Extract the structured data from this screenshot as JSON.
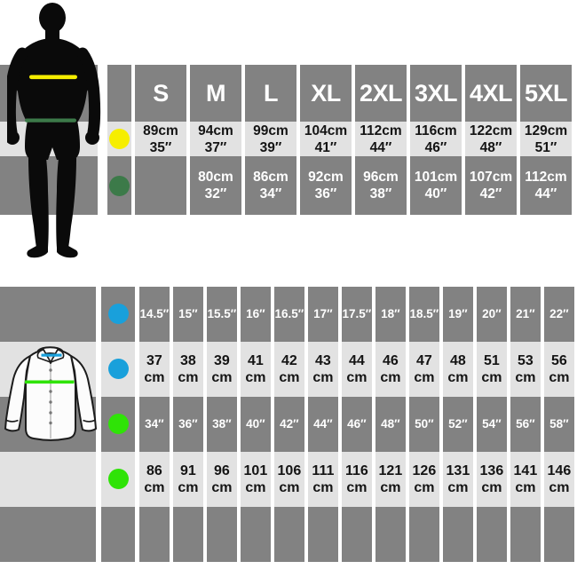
{
  "colors": {
    "band_dark": "#828282",
    "band_light": "#e2e2e2",
    "yellow": "#f6ee00",
    "dark_green": "#3c7a49",
    "blue": "#19a0db",
    "bright_green": "#2fe307",
    "silhouette_black": "#0a0a0a",
    "shirt_fill": "#fcfcfc",
    "shirt_outline": "#1c1c1c",
    "text_on_dark": "#ffffff",
    "text_on_light": "#141414"
  },
  "top_table": {
    "figure": "man-silhouette",
    "figure_markers": [
      {
        "name": "yellow-line",
        "color": "#f6ee00"
      },
      {
        "name": "green-line",
        "color": "#3c7a49"
      }
    ],
    "header": [
      "S",
      "M",
      "L",
      "XL",
      "2XL",
      "3XL",
      "4XL",
      "5XL"
    ],
    "rows": [
      {
        "dot": "yellow",
        "dot_color": "#f6ee00",
        "shade": "light",
        "cells": [
          [
            "89cm",
            "35″"
          ],
          [
            "94cm",
            "37″"
          ],
          [
            "99cm",
            "39″"
          ],
          [
            "104cm",
            "41″"
          ],
          [
            "112cm",
            "44″"
          ],
          [
            "116cm",
            "46″"
          ],
          [
            "122cm",
            "48″"
          ],
          [
            "129cm",
            "51″"
          ]
        ]
      },
      {
        "dot": "green",
        "dot_color": "#3c7a49",
        "shade": "dark",
        "cells": [
          [
            "",
            ""
          ],
          [
            "80cm",
            "32″"
          ],
          [
            "86cm",
            "34″"
          ],
          [
            "92cm",
            "36″"
          ],
          [
            "96cm",
            "38″"
          ],
          [
            "101cm",
            "40″"
          ],
          [
            "107cm",
            "42″"
          ],
          [
            "112cm",
            "44″"
          ]
        ]
      }
    ]
  },
  "bottom_table": {
    "figure": "shirt-illustration",
    "figure_markers": [
      {
        "name": "blue-collar-line",
        "color": "#19a0db"
      },
      {
        "name": "green-chest-line",
        "color": "#2fe307"
      }
    ],
    "rows": [
      {
        "dot": "blue",
        "dot_color": "#19a0db",
        "shade": "dark",
        "style": "inch",
        "cells": [
          [
            "14.5″"
          ],
          [
            "15″"
          ],
          [
            "15.5″"
          ],
          [
            "16″"
          ],
          [
            "16.5″"
          ],
          [
            "17″"
          ],
          [
            "17.5″"
          ],
          [
            "18″"
          ],
          [
            "18.5″"
          ],
          [
            "19″"
          ],
          [
            "20″"
          ],
          [
            "21″"
          ],
          [
            "22″"
          ]
        ]
      },
      {
        "dot": "blue",
        "dot_color": "#19a0db",
        "shade": "light",
        "style": "cm",
        "cells": [
          [
            "37",
            "cm"
          ],
          [
            "38",
            "cm"
          ],
          [
            "39",
            "cm"
          ],
          [
            "41",
            "cm"
          ],
          [
            "42",
            "cm"
          ],
          [
            "43",
            "cm"
          ],
          [
            "44",
            "cm"
          ],
          [
            "46",
            "cm"
          ],
          [
            "47",
            "cm"
          ],
          [
            "48",
            "cm"
          ],
          [
            "51",
            "cm"
          ],
          [
            "53",
            "cm"
          ],
          [
            "56",
            "cm"
          ]
        ]
      },
      {
        "dot": "green",
        "dot_color": "#2fe307",
        "shade": "dark",
        "style": "inch",
        "cells": [
          [
            "34″"
          ],
          [
            "36″"
          ],
          [
            "38″"
          ],
          [
            "40″"
          ],
          [
            "42″"
          ],
          [
            "44″"
          ],
          [
            "46″"
          ],
          [
            "48″"
          ],
          [
            "50″"
          ],
          [
            "52″"
          ],
          [
            "54″"
          ],
          [
            "56″"
          ],
          [
            "58″"
          ]
        ]
      },
      {
        "dot": "green",
        "dot_color": "#2fe307",
        "shade": "light",
        "style": "cm",
        "cells": [
          [
            "86",
            "cm"
          ],
          [
            "91",
            "cm"
          ],
          [
            "96",
            "cm"
          ],
          [
            "101",
            "cm"
          ],
          [
            "106",
            "cm"
          ],
          [
            "111",
            "cm"
          ],
          [
            "116",
            "cm"
          ],
          [
            "121",
            "cm"
          ],
          [
            "126",
            "cm"
          ],
          [
            "131",
            "cm"
          ],
          [
            "136",
            "cm"
          ],
          [
            "141",
            "cm"
          ],
          [
            "146",
            "cm"
          ]
        ]
      },
      {
        "dot": null,
        "dot_color": null,
        "shade": "dark",
        "style": "inch",
        "cells": [
          [
            ""
          ],
          [
            ""
          ],
          [
            ""
          ],
          [
            ""
          ],
          [
            ""
          ],
          [
            ""
          ],
          [
            ""
          ],
          [
            ""
          ],
          [
            ""
          ],
          [
            ""
          ],
          [
            ""
          ],
          [
            ""
          ],
          [
            ""
          ]
        ]
      }
    ]
  },
  "chart_data": [
    {
      "type": "table",
      "title": "",
      "columns": [
        "S",
        "M",
        "L",
        "XL",
        "2XL",
        "3XL",
        "4XL",
        "5XL"
      ],
      "rows": [
        {
          "marker_color": "#f6ee00",
          "values_cm": [
            89,
            94,
            99,
            104,
            112,
            116,
            122,
            129
          ],
          "values_inches": [
            35,
            37,
            39,
            41,
            44,
            46,
            48,
            51
          ]
        },
        {
          "marker_color": "#3c7a49",
          "values_cm": [
            null,
            80,
            86,
            92,
            96,
            101,
            107,
            112
          ],
          "values_inches": [
            null,
            32,
            34,
            36,
            38,
            40,
            42,
            44
          ]
        }
      ]
    },
    {
      "type": "table",
      "title": "",
      "rows": [
        {
          "marker_color": "#19a0db",
          "unit": "inches",
          "values": [
            14.5,
            15,
            15.5,
            16,
            16.5,
            17,
            17.5,
            18,
            18.5,
            19,
            20,
            21,
            22
          ]
        },
        {
          "marker_color": "#19a0db",
          "unit": "cm",
          "values": [
            37,
            38,
            39,
            41,
            42,
            43,
            44,
            46,
            47,
            48,
            51,
            53,
            56
          ]
        },
        {
          "marker_color": "#2fe307",
          "unit": "inches",
          "values": [
            34,
            36,
            38,
            40,
            42,
            44,
            46,
            48,
            50,
            52,
            54,
            56,
            58
          ]
        },
        {
          "marker_color": "#2fe307",
          "unit": "cm",
          "values": [
            86,
            91,
            96,
            101,
            106,
            111,
            116,
            121,
            126,
            131,
            136,
            141,
            146
          ]
        }
      ]
    }
  ]
}
